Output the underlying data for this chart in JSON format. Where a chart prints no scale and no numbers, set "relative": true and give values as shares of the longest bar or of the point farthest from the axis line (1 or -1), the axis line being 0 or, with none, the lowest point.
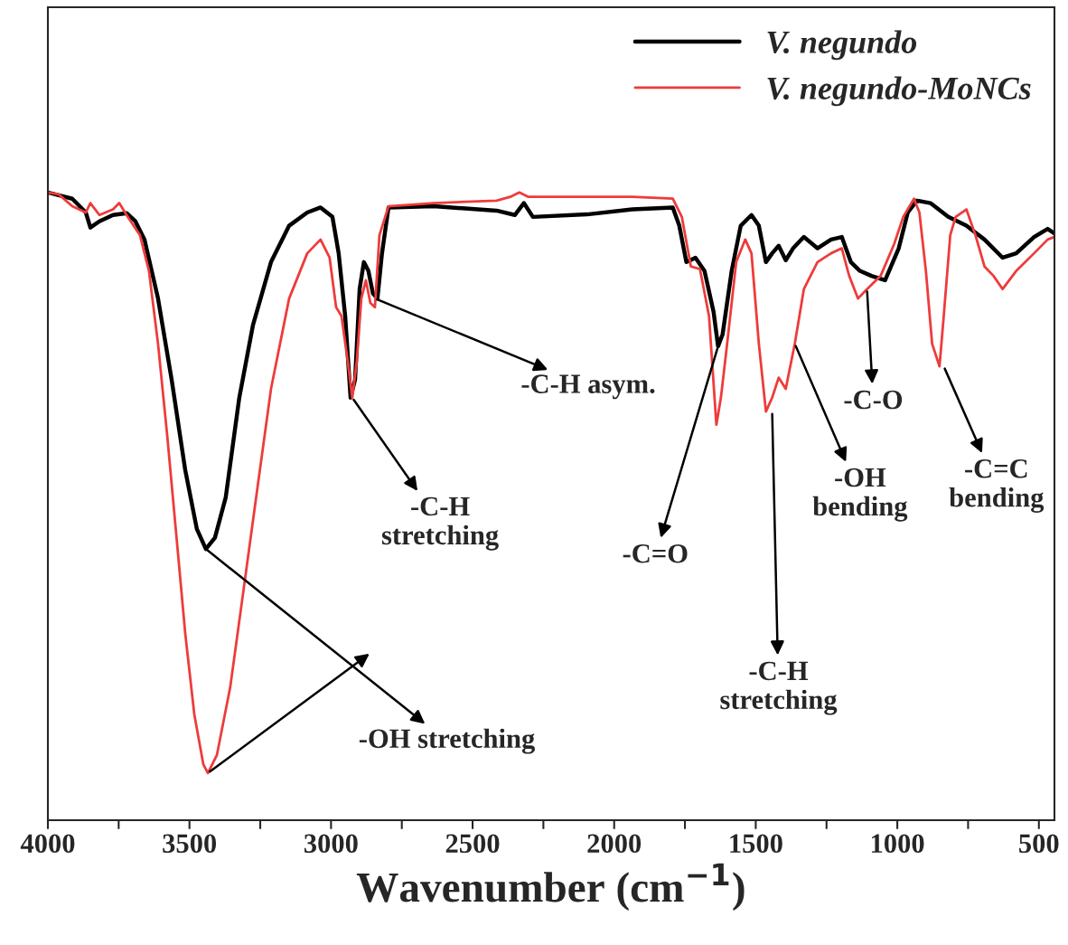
{
  "chart_data": {
    "type": "line",
    "relative": true,
    "xlabel": "Wavenumber (cm$^{−1}$)",
    "xlim": [
      4000,
      445
    ],
    "xticks": [
      4000,
      {
        "value": 3750,
        "label": null
      },
      3500,
      {
        "value": 3250,
        "label": null
      },
      3000,
      {
        "value": 2750,
        "label": null
      },
      2500,
      {
        "value": 2250,
        "label": null
      },
      2000,
      {
        "value": 1750,
        "label": null
      },
      1500,
      {
        "value": 1250,
        "label": null
      },
      1000,
      {
        "value": 750,
        "label": null
      },
      500
    ],
    "tick_labels": "x",
    "grid": false,
    "legend": "top right",
    "marker": "none",
    "line_style": "solid",
    "series": [
      {
        "name": "V. negundo",
        "color": "#000000",
        "x": [
          4000,
          3914,
          3866,
          3850,
          3818,
          3770,
          3722,
          3691,
          3659,
          3611,
          3563,
          3515,
          3474,
          3442,
          3410,
          3372,
          3324,
          3276,
          3212,
          3148,
          3084,
          3037,
          2995,
          2973,
          2950,
          2931,
          2915,
          2899,
          2884,
          2868,
          2852,
          2836,
          2820,
          2797,
          2638,
          2415,
          2351,
          2319,
          2287,
          2096,
          1936,
          1793,
          1770,
          1745,
          1713,
          1681,
          1649,
          1633,
          1617,
          1585,
          1553,
          1515,
          1489,
          1464,
          1442,
          1419,
          1394,
          1368,
          1330,
          1282,
          1234,
          1196,
          1164,
          1132,
          1091,
          1043,
          995,
          963,
          931,
          883,
          820,
          756,
          692,
          628,
          580,
          517,
          469,
          446
        ],
        "values": [
          1.0,
          0.99,
          0.968,
          0.944,
          0.954,
          0.964,
          0.967,
          0.954,
          0.925,
          0.831,
          0.702,
          0.558,
          0.464,
          0.432,
          0.45,
          0.514,
          0.673,
          0.788,
          0.889,
          0.947,
          0.968,
          0.976,
          0.961,
          0.903,
          0.803,
          0.673,
          0.702,
          0.846,
          0.889,
          0.875,
          0.839,
          0.831,
          0.903,
          0.976,
          0.978,
          0.971,
          0.964,
          0.983,
          0.961,
          0.965,
          0.973,
          0.976,
          0.947,
          0.889,
          0.896,
          0.875,
          0.81,
          0.755,
          0.774,
          0.875,
          0.947,
          0.964,
          0.947,
          0.889,
          0.903,
          0.915,
          0.892,
          0.911,
          0.929,
          0.911,
          0.925,
          0.929,
          0.889,
          0.875,
          0.867,
          0.86,
          0.911,
          0.968,
          0.987,
          0.983,
          0.961,
          0.947,
          0.925,
          0.896,
          0.903,
          0.929,
          0.942,
          0.935
        ]
      },
      {
        "name": "V. negundo-MoNCs",
        "color": "#ee3b3b",
        "x": [
          4000,
          3962,
          3914,
          3866,
          3850,
          3818,
          3770,
          3748,
          3722,
          3675,
          3643,
          3611,
          3579,
          3547,
          3515,
          3483,
          3451,
          3435,
          3403,
          3356,
          3308,
          3260,
          3212,
          3148,
          3084,
          3037,
          3005,
          2982,
          2963,
          2941,
          2925,
          2909,
          2893,
          2877,
          2861,
          2845,
          2829,
          2797,
          2638,
          2415,
          2367,
          2335,
          2303,
          2096,
          1936,
          1793,
          1761,
          1729,
          1697,
          1665,
          1639,
          1623,
          1601,
          1569,
          1537,
          1515,
          1489,
          1464,
          1442,
          1419,
          1394,
          1362,
          1330,
          1282,
          1234,
          1196,
          1170,
          1139,
          1107,
          1059,
          1011,
          979,
          941,
          922,
          899,
          877,
          851,
          836,
          813,
          794,
          756,
          724,
          692,
          660,
          628,
          580,
          517,
          469,
          446
        ],
        "values": [
          1.0,
          0.997,
          0.978,
          0.968,
          0.983,
          0.964,
          0.973,
          0.983,
          0.964,
          0.932,
          0.875,
          0.759,
          0.615,
          0.457,
          0.298,
          0.169,
          0.089,
          0.075,
          0.104,
          0.212,
          0.37,
          0.529,
          0.687,
          0.831,
          0.903,
          0.925,
          0.896,
          0.817,
          0.803,
          0.731,
          0.673,
          0.731,
          0.831,
          0.86,
          0.824,
          0.817,
          0.932,
          0.978,
          0.983,
          0.987,
          0.993,
          1.0,
          0.993,
          0.993,
          0.993,
          0.99,
          0.961,
          0.882,
          0.878,
          0.803,
          0.63,
          0.673,
          0.759,
          0.889,
          0.925,
          0.903,
          0.759,
          0.651,
          0.673,
          0.705,
          0.687,
          0.759,
          0.846,
          0.889,
          0.903,
          0.911,
          0.867,
          0.831,
          0.846,
          0.867,
          0.918,
          0.961,
          0.99,
          0.968,
          0.875,
          0.759,
          0.723,
          0.803,
          0.932,
          0.961,
          0.973,
          0.932,
          0.882,
          0.867,
          0.846,
          0.875,
          0.903,
          0.925,
          0.929
        ]
      }
    ],
    "annotations": [
      {
        "text": "-OH stretching",
        "x": 3442,
        "y": 0.432
      },
      {
        "text": "-C-H\nstretching",
        "x": 2925,
        "y": 0.673
      },
      {
        "text": "-C-H asym.",
        "x": 2845,
        "y": 0.831
      },
      {
        "text": "-C=O",
        "x": 1633,
        "y": 0.755
      },
      {
        "text": "-C-H\nstretching",
        "x": 1442,
        "y": 0.651
      },
      {
        "text": "-OH\nbending",
        "x": 1362,
        "y": 0.759
      },
      {
        "text": "-C-O",
        "x": 1107,
        "y": 0.846
      },
      {
        "text": "-C=C\nbending",
        "x": 836,
        "y": 0.723
      }
    ]
  }
}
